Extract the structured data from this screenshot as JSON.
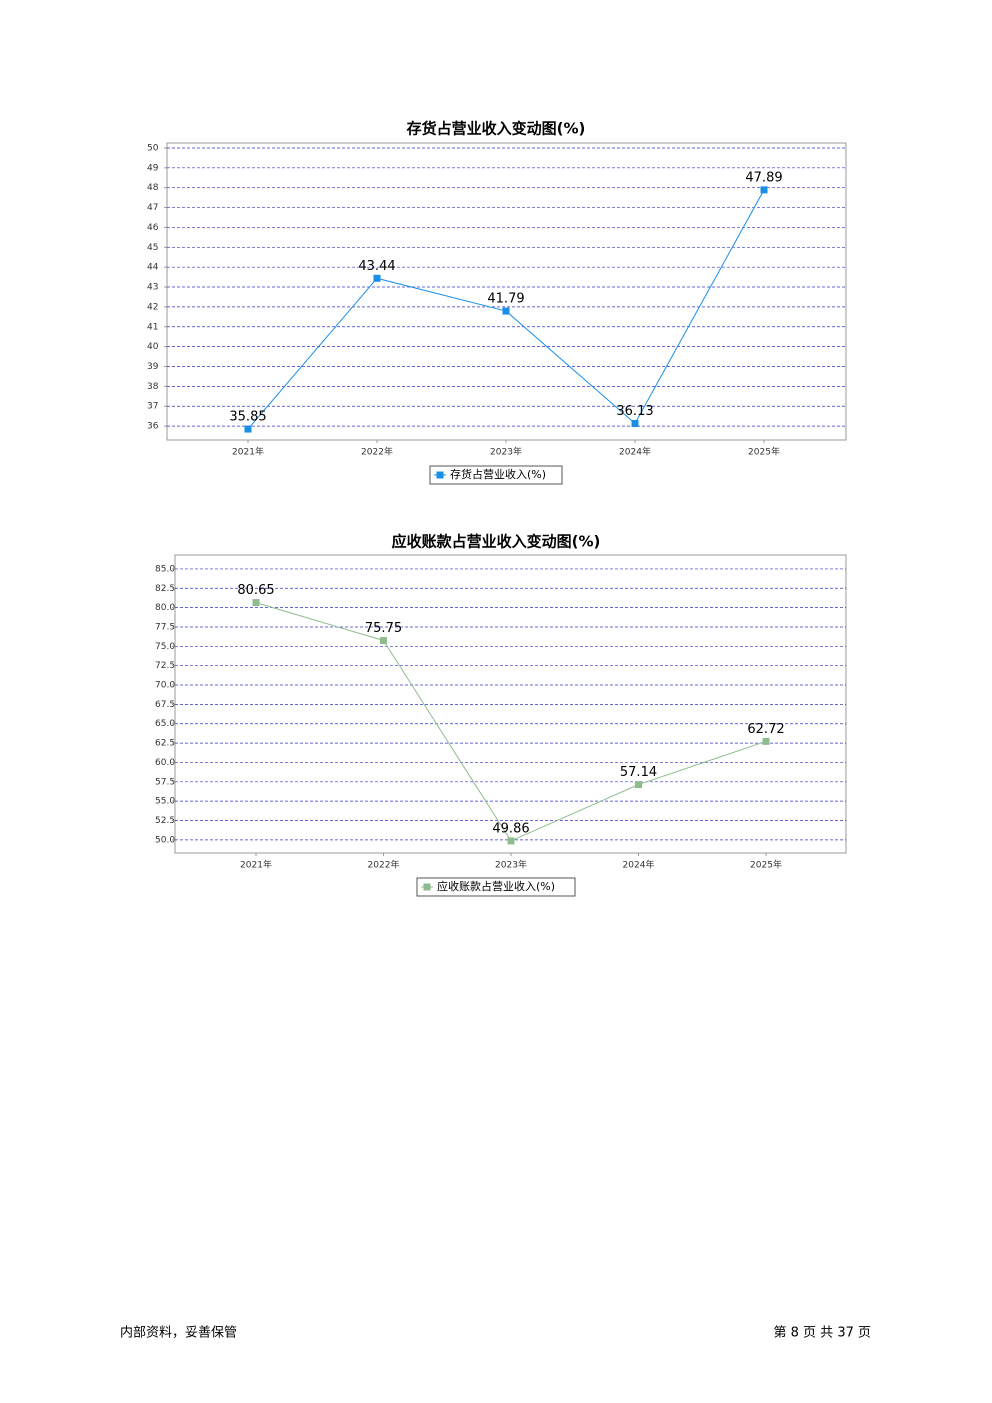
{
  "chart_data": [
    {
      "type": "line",
      "title": "存货占营业收入变动图(%)",
      "categories": [
        "2021年",
        "2022年",
        "2023年",
        "2024年",
        "2025年"
      ],
      "series": [
        {
          "name": "存货占营业收入(%)",
          "color": "#1a8fe8",
          "values": [
            35.85,
            43.44,
            41.79,
            36.13,
            47.89
          ]
        }
      ],
      "ylim": [
        35.3,
        50.25
      ],
      "yticks": [
        36,
        37,
        38,
        39,
        40,
        41,
        42,
        43,
        44,
        45,
        46,
        47,
        48,
        49,
        50
      ],
      "grid": true
    },
    {
      "type": "line",
      "title": "应收账款占营业收入变动图(%)",
      "categories": [
        "2021年",
        "2022年",
        "2023年",
        "2024年",
        "2025年"
      ],
      "series": [
        {
          "name": "应收账款占营业收入(%)",
          "color": "#8fbc8f",
          "values": [
            80.65,
            75.75,
            49.86,
            57.14,
            62.72
          ]
        }
      ],
      "ylim": [
        48.3,
        86.8
      ],
      "yticks": [
        {
          "value": 50,
          "label": "50.0"
        },
        {
          "value": 52.5,
          "label": "52.5"
        },
        {
          "value": 55,
          "label": "55.0"
        },
        {
          "value": 57.5,
          "label": "57.5"
        },
        {
          "value": 60,
          "label": "60.0"
        },
        {
          "value": 62.5,
          "label": "62.5"
        },
        {
          "value": 65,
          "label": "65.0"
        },
        {
          "value": 67.5,
          "label": "67.5"
        },
        {
          "value": 70,
          "label": "70.0"
        },
        {
          "value": 72.5,
          "label": "72.5"
        },
        {
          "value": 75,
          "label": "75.0"
        },
        {
          "value": 77.5,
          "label": "77.5"
        },
        {
          "value": 80,
          "label": "80.0"
        },
        {
          "value": 82.5,
          "label": "82.5"
        },
        {
          "value": 85,
          "label": "85.0"
        }
      ],
      "grid": true
    }
  ],
  "footer": {
    "left": "内部资料，妥善保管",
    "right": "第 8 页 共 37 页"
  }
}
